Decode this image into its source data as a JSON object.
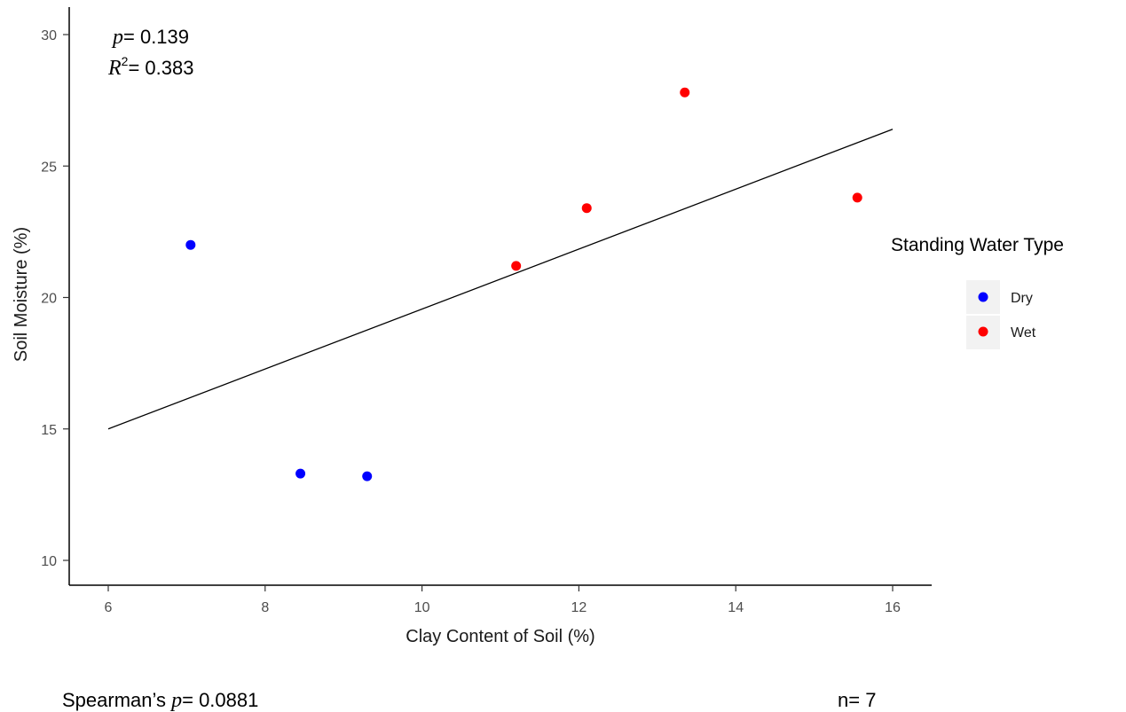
{
  "chart_data": {
    "type": "scatter",
    "xlabel": "Clay Content of Soil (%)",
    "ylabel": "Soil Moisture (%)",
    "xlim": [
      5.5,
      16.5
    ],
    "ylim": [
      9,
      31
    ],
    "x_ticks": [
      6,
      8,
      10,
      12,
      14,
      16
    ],
    "y_ticks": [
      10,
      15,
      20,
      25,
      30
    ],
    "grid": false,
    "legend": {
      "title": "Standing Water Type",
      "placement": "right",
      "entries": [
        {
          "label": "Dry",
          "color": "#0000ff"
        },
        {
          "label": "Wet",
          "color": "#ff0000"
        }
      ]
    },
    "series": [
      {
        "name": "Dry",
        "color": "#0000ff",
        "points": [
          [
            7.05,
            22.0
          ],
          [
            8.45,
            13.3
          ],
          [
            9.3,
            13.2
          ]
        ]
      },
      {
        "name": "Wet",
        "color": "#ff0000",
        "points": [
          [
            11.2,
            21.2
          ],
          [
            12.1,
            23.4
          ],
          [
            13.35,
            27.8
          ],
          [
            15.55,
            23.8
          ]
        ]
      }
    ],
    "trend_line": {
      "x": [
        6,
        16
      ],
      "y": [
        15.0,
        26.4
      ],
      "color": "#000000"
    }
  },
  "annotations": {
    "p_symbol": "p",
    "p_value": "= 0.139",
    "r_symbol": "R",
    "r_exponent": "2",
    "r_value": "= 0.383",
    "spearman_prefix": "Spearman’s ",
    "spearman_symbol": "p",
    "spearman_value": "= 0.0881",
    "n_label": "n= 7"
  }
}
